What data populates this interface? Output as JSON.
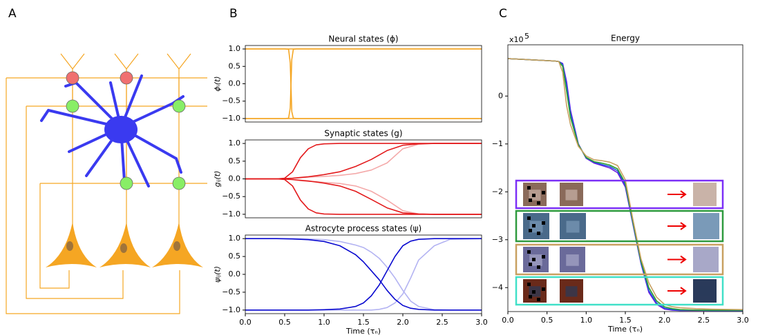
{
  "panels": [
    "A",
    "B",
    "C"
  ],
  "chart_data": [
    {
      "type": "line",
      "title": "Neural states (ϕ)",
      "ylabel": "ϕᵢ(t)",
      "x": [
        0,
        0.5,
        0.55,
        0.57,
        0.59,
        0.61,
        0.65,
        1,
        2,
        3
      ],
      "xlim": [
        0,
        3
      ],
      "ylim": [
        -1.1,
        1.1
      ],
      "yticks": [
        {
          "value": 1,
          "label": "1.0"
        },
        {
          "value": 0.5,
          "label": "0.5"
        },
        {
          "value": 0,
          "label": "0.0"
        },
        {
          "value": -0.5,
          "label": "−0.5"
        },
        {
          "value": -1,
          "label": "−1.0"
        }
      ],
      "series": [
        {
          "color": "#f5a623",
          "values": [
            1,
            1,
            1,
            1,
            1,
            1,
            1,
            1,
            1,
            1
          ]
        },
        {
          "color": "#f5a623",
          "values": [
            -1,
            -1,
            -1,
            -1,
            -1,
            -1,
            -1,
            -1,
            -1,
            -1
          ]
        },
        {
          "color": "#f5a623",
          "values": [
            1,
            1,
            0.99,
            0.6,
            -0.8,
            -0.99,
            -1,
            -1,
            -1,
            -1
          ]
        },
        {
          "color": "#f5a623",
          "values": [
            -1,
            -1,
            -0.99,
            -0.7,
            0.7,
            0.99,
            1,
            1,
            1,
            1
          ]
        }
      ]
    },
    {
      "type": "line",
      "title": "Synaptic states (g)",
      "ylabel": "gᵢⱼ(t)",
      "x": [
        0,
        0.2,
        0.4,
        0.5,
        0.6,
        0.7,
        0.8,
        0.9,
        1.0,
        1.2,
        1.4,
        1.6,
        1.8,
        2.0,
        2.2,
        2.4,
        2.6,
        3.0
      ],
      "xlim": [
        0,
        3
      ],
      "ylim": [
        -1.1,
        1.1
      ],
      "yticks": [
        {
          "value": 1,
          "label": "1.0"
        },
        {
          "value": 0.5,
          "label": "0.5"
        },
        {
          "value": 0,
          "label": "0.0"
        },
        {
          "value": -0.5,
          "label": "−0.5"
        },
        {
          "value": -1,
          "label": "−1.0"
        }
      ],
      "series": [
        {
          "color": "#f4a9a9",
          "values": [
            0,
            0,
            0,
            0,
            0.01,
            0.03,
            0.05,
            0.06,
            0.07,
            0.1,
            0.15,
            0.25,
            0.45,
            0.85,
            0.98,
            1,
            1,
            1
          ]
        },
        {
          "color": "#f4a9a9",
          "values": [
            0,
            0,
            0,
            0,
            -0.02,
            -0.05,
            -0.07,
            -0.08,
            -0.1,
            -0.13,
            -0.2,
            -0.35,
            -0.6,
            -0.9,
            -0.99,
            -1,
            -1,
            -1
          ]
        },
        {
          "color": "#e31a1c",
          "values": [
            0,
            0,
            0,
            0.02,
            0.2,
            0.6,
            0.85,
            0.96,
            0.99,
            1,
            1,
            1,
            1,
            1,
            1,
            1,
            1,
            1
          ]
        },
        {
          "color": "#e31a1c",
          "values": [
            0,
            0,
            0,
            -0.02,
            -0.2,
            -0.6,
            -0.85,
            -0.96,
            -0.99,
            -1,
            -1,
            -1,
            -1,
            -1,
            -1,
            -1,
            -1,
            -1
          ]
        },
        {
          "color": "#e31a1c",
          "values": [
            0,
            0,
            0,
            0.01,
            0.02,
            0.04,
            0.06,
            0.09,
            0.12,
            0.2,
            0.35,
            0.55,
            0.8,
            0.95,
            0.99,
            1,
            1,
            1
          ]
        },
        {
          "color": "#e31a1c",
          "values": [
            0,
            0,
            0,
            -0.01,
            -0.02,
            -0.04,
            -0.06,
            -0.09,
            -0.12,
            -0.2,
            -0.35,
            -0.58,
            -0.82,
            -0.96,
            -0.99,
            -1,
            -1,
            -1
          ]
        }
      ]
    },
    {
      "type": "line",
      "title": "Astrocyte process states (ψ)",
      "ylabel": "ψᵢⱼ(t)",
      "xlabel": "Time (τₙ)",
      "x": [
        0,
        0.4,
        0.6,
        0.8,
        1.0,
        1.2,
        1.4,
        1.5,
        1.6,
        1.7,
        1.8,
        1.9,
        2.0,
        2.1,
        2.2,
        2.4,
        2.6,
        3.0
      ],
      "xlim": [
        0,
        3
      ],
      "ylim": [
        -1.1,
        1.1
      ],
      "xticks": [
        {
          "value": 0,
          "label": "0.0"
        },
        {
          "value": 0.5,
          "label": "0.5"
        },
        {
          "value": 1,
          "label": "1.0"
        },
        {
          "value": 1.5,
          "label": "1.5"
        },
        {
          "value": 2,
          "label": "2.0"
        },
        {
          "value": 2.5,
          "label": "2.5"
        },
        {
          "value": 3,
          "label": "3.0"
        }
      ],
      "yticks": [
        {
          "value": 1,
          "label": "1.0"
        },
        {
          "value": 0.5,
          "label": "0.5"
        },
        {
          "value": 0,
          "label": "0.0"
        },
        {
          "value": -0.5,
          "label": "−0.5"
        },
        {
          "value": -1,
          "label": "−1.0"
        }
      ],
      "series": [
        {
          "color": "#b3b3f2",
          "values": [
            1,
            1,
            1,
            0.99,
            0.97,
            0.92,
            0.82,
            0.75,
            0.62,
            0.45,
            0.2,
            -0.1,
            -0.45,
            -0.75,
            -0.9,
            -0.99,
            -1,
            -1
          ]
        },
        {
          "color": "#b3b3f2",
          "values": [
            -1,
            -1,
            -1,
            -1,
            -1,
            -1,
            -1,
            -1,
            -1,
            -0.98,
            -0.93,
            -0.8,
            -0.55,
            -0.1,
            0.4,
            0.8,
            0.98,
            1
          ]
        },
        {
          "color": "#0a0ad0",
          "values": [
            1,
            1,
            0.99,
            0.97,
            0.92,
            0.8,
            0.55,
            0.35,
            0.1,
            -0.15,
            -0.45,
            -0.7,
            -0.87,
            -0.95,
            -0.98,
            -1,
            -1,
            -1
          ]
        },
        {
          "color": "#0a0ad0",
          "values": [
            -1,
            -1,
            -1,
            -1,
            -0.99,
            -0.97,
            -0.9,
            -0.8,
            -0.6,
            -0.3,
            0.1,
            0.5,
            0.8,
            0.93,
            0.98,
            1,
            1,
            1
          ]
        }
      ]
    },
    {
      "type": "line",
      "title": "Energy",
      "xlabel": "Time (τₙ)",
      "yscale_base": "x10",
      "yscale_exponent": "5",
      "x": [
        0,
        0.5,
        0.6,
        0.65,
        0.7,
        0.75,
        0.8,
        0.9,
        1.0,
        1.1,
        1.2,
        1.3,
        1.4,
        1.5,
        1.6,
        1.7,
        1.8,
        1.9,
        2.0,
        2.1,
        2.2,
        2.4,
        2.6,
        3.0
      ],
      "xlim": [
        0,
        3
      ],
      "ylim": [
        -4.5,
        1.07
      ],
      "xticks": [
        {
          "value": 0,
          "label": "0.0"
        },
        {
          "value": 0.5,
          "label": "0.5"
        },
        {
          "value": 1,
          "label": "1.0"
        },
        {
          "value": 1.5,
          "label": "1.5"
        },
        {
          "value": 2,
          "label": "2.0"
        },
        {
          "value": 2.5,
          "label": "2.5"
        },
        {
          "value": 3,
          "label": "3.0"
        }
      ],
      "yticks": [
        0,
        {
          "value": -1,
          "label": "−1"
        },
        {
          "value": -2,
          "label": "−2"
        },
        {
          "value": -3,
          "label": "−3"
        },
        {
          "value": -4,
          "label": "−4"
        }
      ],
      "series": [
        {
          "color": "#6a1be0",
          "values": [
            0.78,
            0.74,
            0.73,
            0.72,
            0.68,
            0.3,
            -0.3,
            -1.0,
            -1.3,
            -1.4,
            -1.45,
            -1.5,
            -1.6,
            -1.9,
            -2.7,
            -3.5,
            -4.1,
            -4.35,
            -4.45,
            -4.47,
            -4.48,
            -4.48,
            -4.48,
            -4.48
          ]
        },
        {
          "color": "#2255dd",
          "values": [
            0.78,
            0.74,
            0.73,
            0.72,
            0.66,
            0.22,
            -0.36,
            -1.01,
            -1.29,
            -1.38,
            -1.43,
            -1.47,
            -1.56,
            -1.86,
            -2.68,
            -3.48,
            -4.06,
            -4.32,
            -4.43,
            -4.46,
            -4.47,
            -4.47,
            -4.48,
            -4.48
          ]
        },
        {
          "color": "#2ca02c",
          "values": [
            0.78,
            0.74,
            0.73,
            0.72,
            0.62,
            0.1,
            -0.45,
            -1.02,
            -1.28,
            -1.37,
            -1.4,
            -1.44,
            -1.52,
            -1.82,
            -2.65,
            -3.45,
            -4.0,
            -4.28,
            -4.4,
            -4.44,
            -4.46,
            -4.47,
            -4.47,
            -4.47
          ]
        },
        {
          "color": "#c8a060",
          "values": [
            0.78,
            0.74,
            0.73,
            0.72,
            0.5,
            -0.2,
            -0.6,
            -1.05,
            -1.25,
            -1.33,
            -1.35,
            -1.38,
            -1.45,
            -1.75,
            -2.6,
            -3.4,
            -3.9,
            -4.2,
            -4.35,
            -4.4,
            -4.42,
            -4.44,
            -4.45,
            -4.46
          ]
        }
      ]
    }
  ]
}
